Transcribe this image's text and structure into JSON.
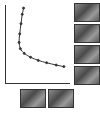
{
  "chart_data": {
    "type": "line",
    "x": [
      29,
      27,
      25,
      23,
      22,
      24,
      30,
      40,
      52,
      65,
      80,
      92
    ],
    "values": [
      96,
      88,
      76,
      63,
      52,
      44,
      38,
      33,
      29,
      26,
      23,
      21
    ],
    "xlim": [
      0,
      100
    ],
    "ylim": [
      0,
      100
    ],
    "tick_labels": false,
    "grid": false,
    "color": "#333333",
    "marker": "circle",
    "line_style": "solid"
  }
}
